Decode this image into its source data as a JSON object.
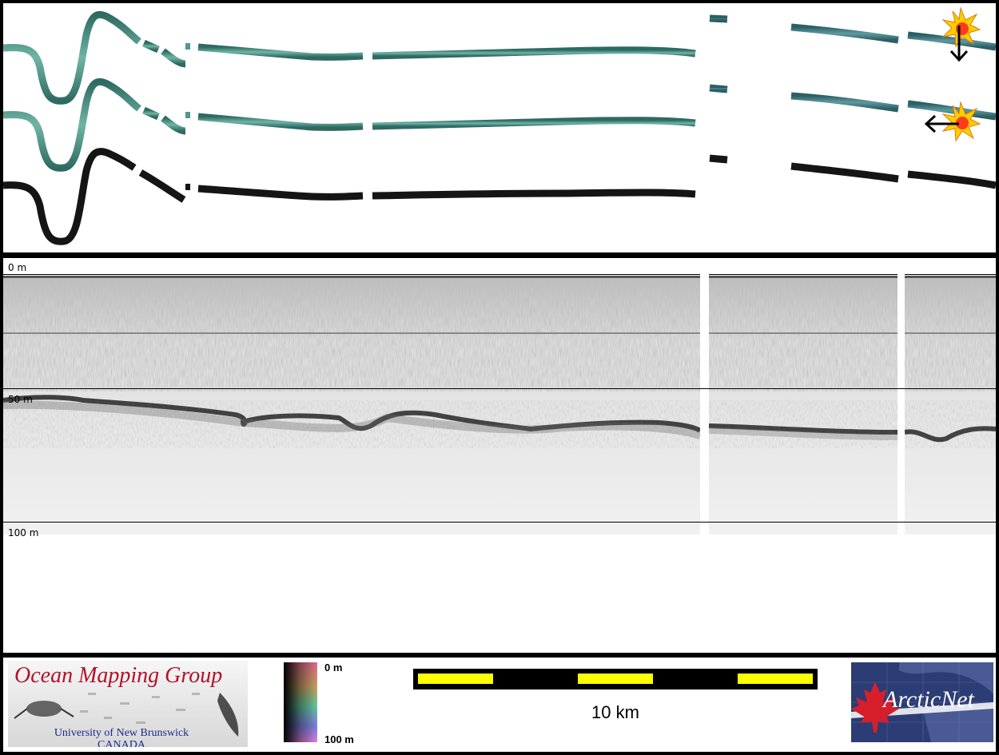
{
  "depth_labels": {
    "top": "0 m",
    "mid": "50 m",
    "bottom": "100 m"
  },
  "colorbar": {
    "top_label": "0 m",
    "bottom_label": "100 m"
  },
  "scale": {
    "label": "10 km"
  },
  "logos": {
    "omg_title": "Ocean Mapping Group",
    "omg_sub_1": "University of New Brunswick",
    "omg_sub_2": "CANADA",
    "arcticnet": "ArcticNet"
  },
  "colors": {
    "swath_teal": "#4f9a8e",
    "swath_black": "#151515",
    "scale_yellow": "#ffff00",
    "omg_red": "#b3122a"
  }
}
